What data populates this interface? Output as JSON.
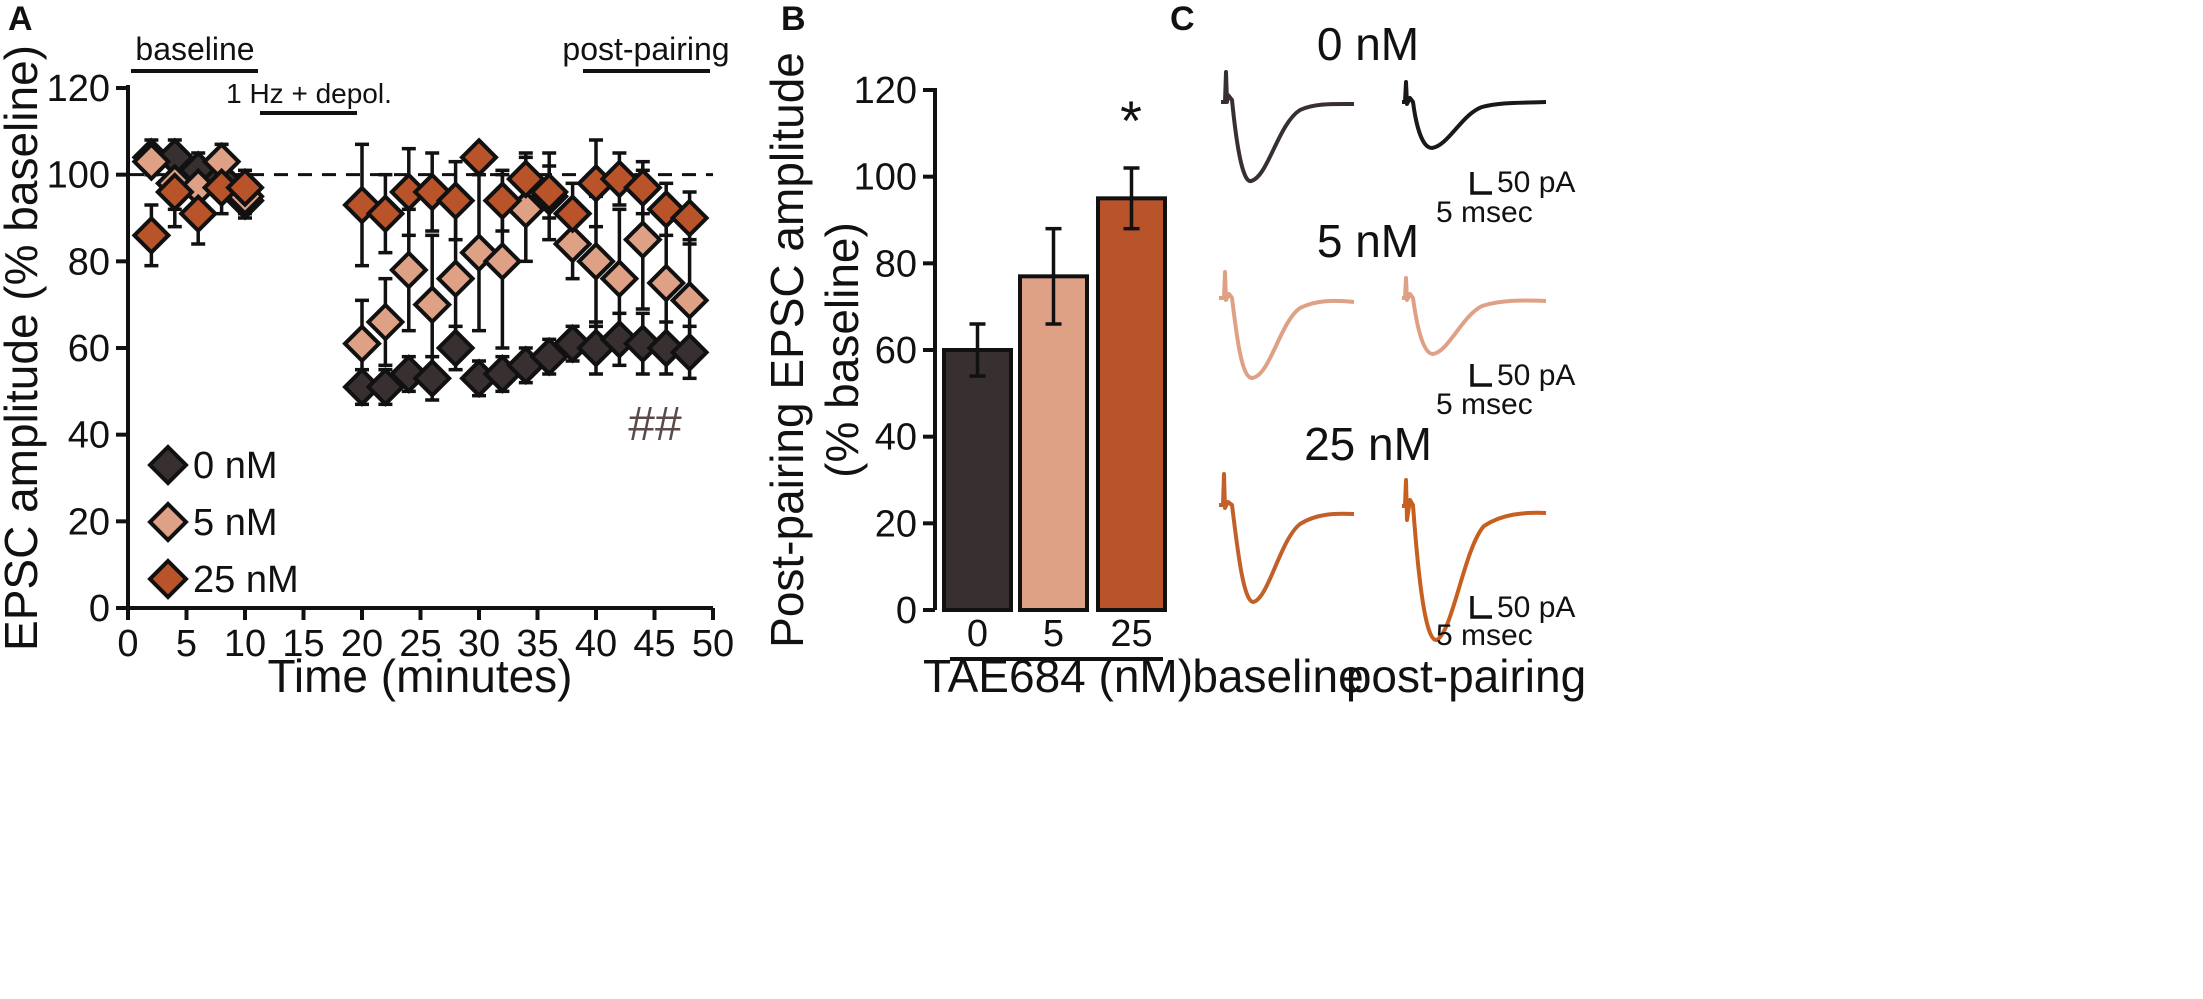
{
  "panels": {
    "a": "A",
    "b": "B",
    "c": "C"
  },
  "colors": {
    "c0": "#383030",
    "c5": "#dfa185",
    "c25": "#b8532a",
    "c25_trace": "#c7601f",
    "axis": "#111111",
    "hash": "#5a4a48"
  },
  "panel_a": {
    "baseline_label": "baseline",
    "pairing_label": "1 Hz + depol.",
    "post_label": "post-pairing",
    "annotation": "##",
    "legend": [
      {
        "key": "c0",
        "label": "0 nM"
      },
      {
        "key": "c5",
        "label": "5 nM"
      },
      {
        "key": "c25",
        "label": "25 nM"
      }
    ]
  },
  "panel_b_text": {
    "significance": "*"
  },
  "panel_c": {
    "titles": [
      "0 nM",
      "5 nM",
      "25 nM"
    ],
    "scale_y": "50 pA",
    "scale_x": "5 msec",
    "col_baseline": "baseline",
    "col_post": "post-pairing"
  },
  "chart_data": [
    {
      "type": "scatter",
      "panel": "A",
      "xlabel": "Time (minutes)",
      "ylabel": "EPSC amplitude (% baseline)",
      "xlim": [
        0,
        50
      ],
      "ylim": [
        0,
        120
      ],
      "xticks": [
        0,
        5,
        10,
        15,
        20,
        25,
        30,
        35,
        40,
        45,
        50
      ],
      "yticks": [
        0,
        20,
        40,
        60,
        80,
        100,
        120
      ],
      "reference_line": 100,
      "periods": {
        "baseline": [
          0.5,
          11
        ],
        "pairing": [
          11.5,
          19.5
        ],
        "post_pairing": [
          38.5,
          50
        ]
      },
      "series": [
        {
          "name": "0 nM",
          "color_key": "c0",
          "points": [
            [
              2,
              104,
              4
            ],
            [
              4,
              104,
              4
            ],
            [
              6,
              101,
              4
            ],
            [
              8,
              99,
              3
            ],
            [
              10,
              94,
              3
            ],
            [
              20,
              51,
              4
            ],
            [
              22,
              51,
              4
            ],
            [
              24,
              54,
              4
            ],
            [
              26,
              53,
              5
            ],
            [
              28,
              60,
              5
            ],
            [
              30,
              53,
              4
            ],
            [
              32,
              54,
              4
            ],
            [
              34,
              56,
              4
            ],
            [
              36,
              58,
              4
            ],
            [
              38,
              61,
              4
            ],
            [
              40,
              60,
              6
            ],
            [
              42,
              62,
              6
            ],
            [
              44,
              61,
              7
            ],
            [
              46,
              60,
              6
            ],
            [
              48,
              59,
              6
            ]
          ]
        },
        {
          "name": "5 nM",
          "color_key": "c5",
          "points": [
            [
              2,
              103,
              3
            ],
            [
              4,
              98,
              6
            ],
            [
              6,
              97,
              6
            ],
            [
              8,
              103,
              4
            ],
            [
              10,
              95,
              5
            ],
            [
              20,
              61,
              10
            ],
            [
              22,
              66,
              10
            ],
            [
              24,
              78,
              14
            ],
            [
              26,
              70,
              16
            ],
            [
              28,
              76,
              16
            ],
            [
              30,
              82,
              18
            ],
            [
              32,
              80,
              20
            ],
            [
              34,
              92,
              12
            ],
            [
              36,
              95,
              10
            ],
            [
              38,
              84,
              8
            ],
            [
              40,
              80,
              15
            ],
            [
              42,
              76,
              16
            ],
            [
              44,
              85,
              16
            ],
            [
              46,
              75,
              16
            ],
            [
              48,
              71,
              14
            ]
          ]
        },
        {
          "name": "25 nM",
          "color_key": "c25",
          "points": [
            [
              2,
              86,
              7
            ],
            [
              4,
              96,
              8
            ],
            [
              6,
              91,
              7
            ],
            [
              8,
              97,
              6
            ],
            [
              10,
              97,
              4
            ],
            [
              20,
              93,
              14
            ],
            [
              22,
              91,
              9
            ],
            [
              24,
              96,
              10
            ],
            [
              26,
              96,
              9
            ],
            [
              28,
              94,
              9
            ],
            [
              30,
              104,
              0
            ],
            [
              32,
              94,
              7
            ],
            [
              34,
              99,
              6
            ],
            [
              36,
              96,
              6
            ],
            [
              38,
              91,
              7
            ],
            [
              40,
              98,
              10
            ],
            [
              42,
              99,
              6
            ],
            [
              44,
              97,
              6
            ],
            [
              46,
              92,
              6
            ],
            [
              48,
              90,
              6
            ]
          ]
        }
      ]
    },
    {
      "type": "bar",
      "panel": "B",
      "categories": [
        "0",
        "5",
        "25"
      ],
      "values": [
        60,
        77,
        95
      ],
      "errors": [
        6,
        11,
        7
      ],
      "color_keys": [
        "c0",
        "c5",
        "c25"
      ],
      "xlabel": "TAE684 (nM)",
      "ylabel_line1": "Post-pairing EPSC amplitude",
      "ylabel_line2": "(% baseline)",
      "ylim": [
        0,
        120
      ],
      "yticks": [
        0,
        20,
        40,
        60,
        80,
        100,
        120
      ]
    }
  ]
}
